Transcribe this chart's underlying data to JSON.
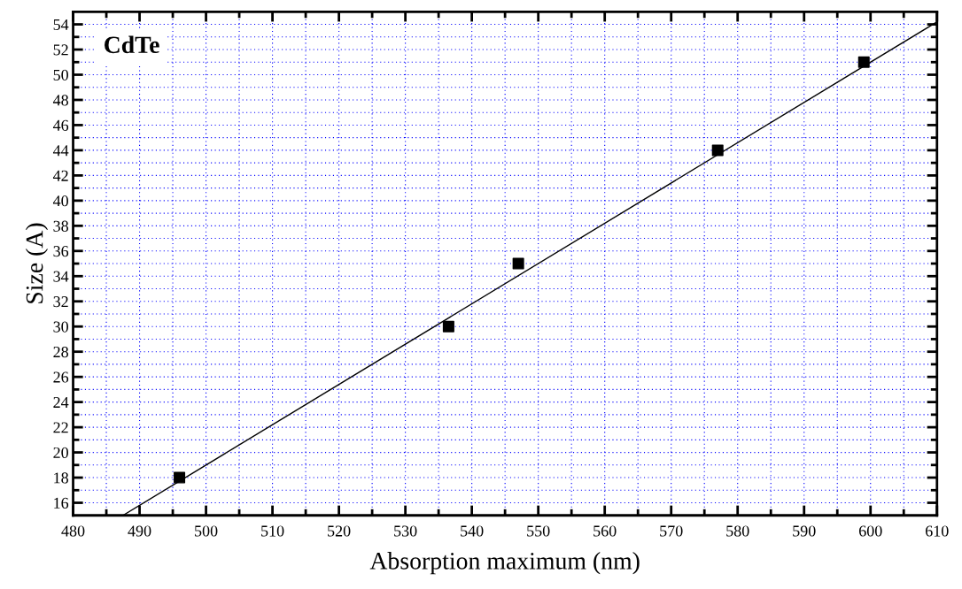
{
  "chart_data": {
    "type": "scatter",
    "xlabel": "Absorption maximum (nm)",
    "ylabel": "Size (A)",
    "annotations": [
      "CdTe"
    ],
    "series": [
      {
        "color": "#000000",
        "marker": "square",
        "x": [
          496,
          536.5,
          547,
          577,
          599
        ],
        "values": [
          18,
          30,
          35,
          44,
          51
        ]
      },
      {
        "type": "line",
        "color": "#000000",
        "line_style": "solid",
        "x": [
          487.5,
          610
        ],
        "values": [
          15,
          54.2
        ]
      }
    ],
    "xlim": [
      480,
      610
    ],
    "xticks": [
      480,
      {
        "value": 485,
        "label": null
      },
      490,
      {
        "value": 495,
        "label": null
      },
      500,
      {
        "value": 505,
        "label": null
      },
      510,
      {
        "value": 515,
        "label": null
      },
      520,
      {
        "value": 525,
        "label": null
      },
      530,
      {
        "value": 535,
        "label": null
      },
      540,
      {
        "value": 545,
        "label": null
      },
      550,
      {
        "value": 555,
        "label": null
      },
      560,
      {
        "value": 565,
        "label": null
      },
      570,
      {
        "value": 575,
        "label": null
      },
      580,
      {
        "value": 585,
        "label": null
      },
      590,
      {
        "value": 595,
        "label": null
      },
      600,
      {
        "value": 605,
        "label": null
      },
      610
    ],
    "ylim": [
      15,
      55
    ],
    "yticks": [
      16,
      {
        "value": 17,
        "label": null
      },
      18,
      {
        "value": 19,
        "label": null
      },
      20,
      {
        "value": 21,
        "label": null
      },
      22,
      {
        "value": 23,
        "label": null
      },
      24,
      {
        "value": 25,
        "label": null
      },
      26,
      {
        "value": 27,
        "label": null
      },
      28,
      {
        "value": 29,
        "label": null
      },
      30,
      {
        "value": 31,
        "label": null
      },
      32,
      {
        "value": 33,
        "label": null
      },
      34,
      {
        "value": 35,
        "label": null
      },
      36,
      {
        "value": 37,
        "label": null
      },
      38,
      {
        "value": 39,
        "label": null
      },
      40,
      {
        "value": 41,
        "label": null
      },
      42,
      {
        "value": 43,
        "label": null
      },
      44,
      {
        "value": 45,
        "label": null
      },
      46,
      {
        "value": 47,
        "label": null
      },
      48,
      {
        "value": 49,
        "label": null
      },
      50,
      {
        "value": 51,
        "label": null
      },
      52,
      {
        "value": 53,
        "label": null
      },
      54
    ],
    "grid": true
  }
}
